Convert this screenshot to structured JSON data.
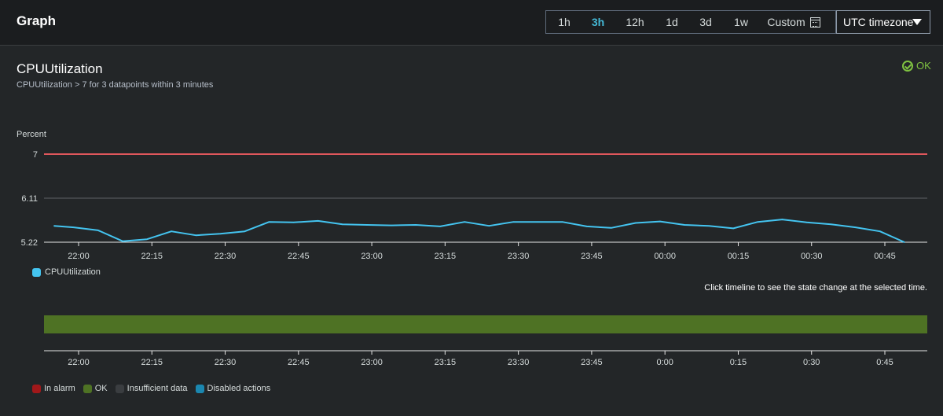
{
  "header": {
    "title": "Graph",
    "ranges": [
      "1h",
      "3h",
      "12h",
      "1d",
      "3d",
      "1w"
    ],
    "active_range": "3h",
    "custom_label": "Custom",
    "timezone": "UTC timezone"
  },
  "metric": {
    "title": "CPUUtilization",
    "subtitle": "CPUUtilization > 7 for 3 datapoints within 3 minutes",
    "status": "OK"
  },
  "colors": {
    "series": "#44c4f0",
    "threshold": "#e0575c",
    "ok": "#4e7224",
    "in_alarm": "#a1181a",
    "insufficient": "#3a3d40",
    "disabled": "#1b87b0",
    "ok_text": "#7fc241"
  },
  "chart_data": {
    "type": "line",
    "ylabel": "Percent",
    "yticks": [
      "7",
      "6.11",
      "5.22"
    ],
    "ylim": [
      5.22,
      7
    ],
    "threshold": 7,
    "xticks": [
      "22:00",
      "22:15",
      "22:30",
      "22:45",
      "23:00",
      "23:15",
      "23:30",
      "23:45",
      "00:00",
      "00:15",
      "00:30",
      "00:45"
    ],
    "series": [
      {
        "name": "CPUUtilization",
        "x": [
          "21:55",
          "21:59",
          "22:04",
          "22:09",
          "22:14",
          "22:19",
          "22:24",
          "22:29",
          "22:34",
          "22:39",
          "22:44",
          "22:49",
          "22:54",
          "22:59",
          "23:04",
          "23:09",
          "23:14",
          "23:19",
          "23:24",
          "23:29",
          "23:34",
          "23:39",
          "23:44",
          "23:49",
          "23:54",
          "23:59",
          "00:04",
          "00:09",
          "00:14",
          "00:19",
          "00:24",
          "00:29",
          "00:34",
          "00:39",
          "00:44",
          "00:49"
        ],
        "values": [
          5.55,
          5.52,
          5.46,
          5.24,
          5.28,
          5.44,
          5.36,
          5.39,
          5.44,
          5.63,
          5.62,
          5.65,
          5.58,
          5.57,
          5.56,
          5.57,
          5.54,
          5.63,
          5.55,
          5.63,
          5.63,
          5.63,
          5.54,
          5.51,
          5.61,
          5.64,
          5.57,
          5.55,
          5.5,
          5.63,
          5.68,
          5.62,
          5.58,
          5.52,
          5.44,
          5.22
        ]
      }
    ]
  },
  "timeline": {
    "hint": "Click timeline to see the state change at the selected time.",
    "xticks": [
      "22:00",
      "22:15",
      "22:30",
      "22:45",
      "23:00",
      "23:15",
      "23:30",
      "23:45",
      "0:00",
      "0:15",
      "0:30",
      "0:45"
    ],
    "states": [
      {
        "key": "in_alarm",
        "label": "In alarm"
      },
      {
        "key": "ok",
        "label": "OK"
      },
      {
        "key": "insufficient",
        "label": "Insufficient data"
      },
      {
        "key": "disabled",
        "label": "Disabled actions"
      }
    ]
  }
}
